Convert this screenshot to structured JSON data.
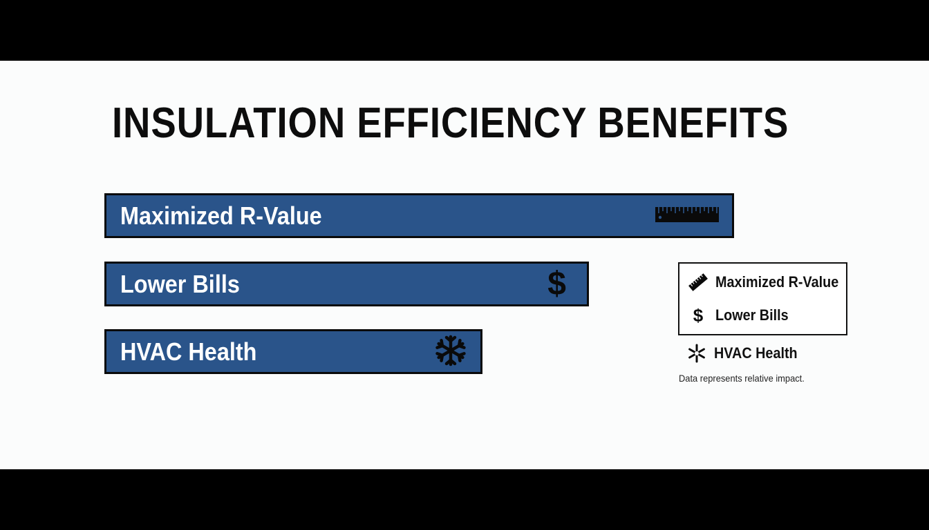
{
  "chart_data": {
    "type": "bar",
    "orientation": "horizontal",
    "title": "INSULATION EFFICIENCY BENEFITS",
    "categories": [
      "Maximized R-Value",
      "Lower Bills",
      "HVAC Health"
    ],
    "values": [
      100,
      77,
      60
    ],
    "xlim": [
      0,
      100
    ],
    "grid": false,
    "legend_placement": "right",
    "legend": [
      {
        "label": "Maximized R-Value",
        "icon": "ruler-icon"
      },
      {
        "label": "Lower Bills",
        "icon": "dollar-icon"
      },
      {
        "label": "HVAC Health",
        "icon": "snowflake-icon"
      }
    ],
    "note": "Data represents relative impact.",
    "bar_color": "#2a548a",
    "border_color": "#0a0a0a"
  }
}
